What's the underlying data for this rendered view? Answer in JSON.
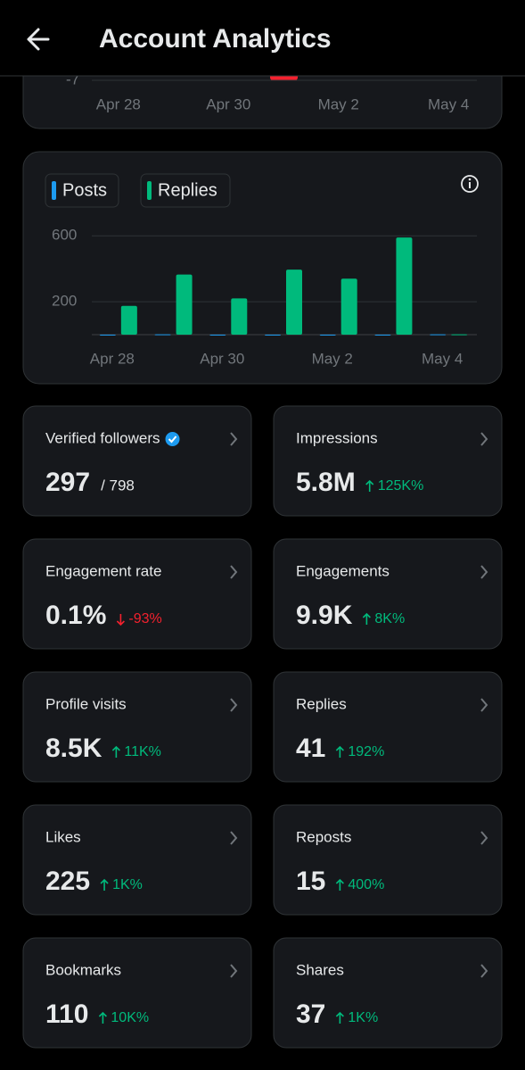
{
  "header": {
    "title": "Account Analytics"
  },
  "chart_data": [
    {
      "type": "bar",
      "categories": [
        "Apr 28",
        null,
        "Apr 30",
        null,
        "May 2",
        null,
        "May 4"
      ],
      "yticks": [
        -7
      ]
    },
    {
      "type": "bar",
      "categories": [
        "Apr 28",
        null,
        "Apr 30",
        null,
        "May 2",
        null,
        "May 4"
      ],
      "series": [
        {
          "name": "Posts",
          "color": "#1d9bf0",
          "values": [
            0,
            2,
            0,
            0,
            0,
            0,
            2
          ]
        },
        {
          "name": "Replies",
          "color": "#00ba7c",
          "values": [
            175,
            365,
            220,
            395,
            340,
            590,
            2
          ]
        }
      ],
      "ylim": [
        0,
        650
      ],
      "yticks": [
        200,
        600
      ],
      "grid": true
    }
  ],
  "metrics": {
    "cards": [
      {
        "label": "Verified followers",
        "verified": true,
        "value": "297",
        "suffix": "/ 798"
      },
      {
        "label": "Impressions",
        "value": "5.8M",
        "change": "125K%",
        "trend": "up"
      },
      {
        "label": "Engagement rate",
        "value": "0.1%",
        "change": "-93%",
        "trend": "down"
      },
      {
        "label": "Engagements",
        "value": "9.9K",
        "change": "8K%",
        "trend": "up"
      },
      {
        "label": "Profile visits",
        "value": "8.5K",
        "change": "11K%",
        "trend": "up"
      },
      {
        "label": "Replies",
        "value": "41",
        "change": "192%",
        "trend": "up"
      },
      {
        "label": "Likes",
        "value": "225",
        "change": "1K%",
        "trend": "up"
      },
      {
        "label": "Reposts",
        "value": "15",
        "change": "400%",
        "trend": "up"
      },
      {
        "label": "Bookmarks",
        "value": "110",
        "change": "10K%",
        "trend": "up"
      },
      {
        "label": "Shares",
        "value": "37",
        "change": "1K%",
        "trend": "up"
      }
    ]
  }
}
